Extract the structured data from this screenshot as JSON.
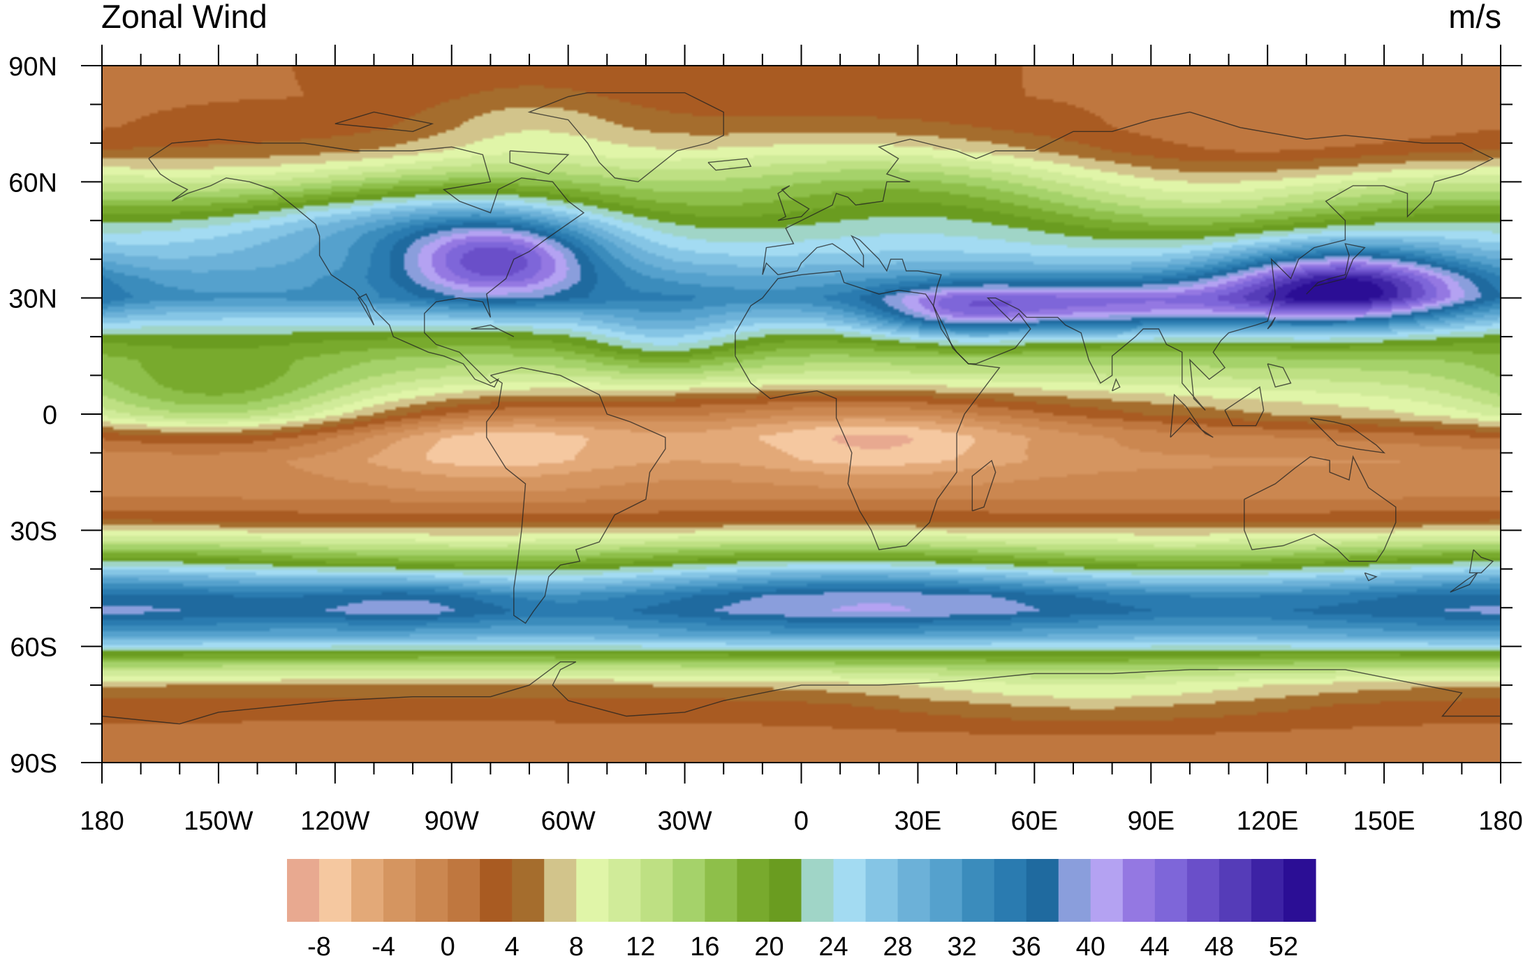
{
  "title": "Zonal Wind",
  "units": "m/s",
  "map": {
    "projection": "cylindrical-equidistant",
    "lon_range": [
      -180,
      180
    ],
    "lat_range": [
      -90,
      90
    ],
    "x_ticks": [
      {
        "value": -180,
        "label": "180"
      },
      {
        "value": -150,
        "label": "150W"
      },
      {
        "value": -120,
        "label": "120W"
      },
      {
        "value": -90,
        "label": "90W"
      },
      {
        "value": -60,
        "label": "60W"
      },
      {
        "value": -30,
        "label": "30W"
      },
      {
        "value": 0,
        "label": "0"
      },
      {
        "value": 30,
        "label": "30E"
      },
      {
        "value": 60,
        "label": "60E"
      },
      {
        "value": 90,
        "label": "90E"
      },
      {
        "value": 120,
        "label": "120E"
      },
      {
        "value": 150,
        "label": "150E"
      },
      {
        "value": 180,
        "label": "180"
      }
    ],
    "y_ticks": [
      {
        "value": 90,
        "label": "90N"
      },
      {
        "value": 60,
        "label": "60N"
      },
      {
        "value": 30,
        "label": "30N"
      },
      {
        "value": 0,
        "label": "0"
      },
      {
        "value": -30,
        "label": "30S"
      },
      {
        "value": -60,
        "label": "60S"
      },
      {
        "value": -90,
        "label": "90S"
      }
    ],
    "minor_x_step": 10,
    "minor_y_step": 10
  },
  "colorbar": {
    "colors": [
      "#E8A990",
      "#F5C8A0",
      "#E3A978",
      "#D59560",
      "#CB8750",
      "#BF773F",
      "#A95B22",
      "#A56D2D",
      "#D2C48B",
      "#E0F5A8",
      "#D0EB99",
      "#BEE083",
      "#A5D26A",
      "#8EBF4A",
      "#78AA2D",
      "#6A9C20",
      "#A0D5C7",
      "#A3DBF2",
      "#85C5E5",
      "#6CB1D8",
      "#55A1CD",
      "#3B8CBC",
      "#2A7BB0",
      "#1F6A9F",
      "#8A9EDC",
      "#B4A2F2",
      "#9478E2",
      "#7E66D9",
      "#6A4FC9",
      "#553CB8",
      "#3D22A5",
      "#2B0E95"
    ],
    "label_values": [
      -8,
      -4,
      0,
      4,
      8,
      12,
      16,
      20,
      24,
      28,
      32,
      36,
      40,
      44,
      48,
      52
    ],
    "label_texts": [
      "-8",
      "-4",
      "0",
      "4",
      "8",
      "12",
      "16",
      "20",
      "24",
      "28",
      "32",
      "36",
      "40",
      "44",
      "48",
      "52"
    ],
    "min": -10,
    "step": 2
  },
  "field": {
    "description_hidden": true,
    "zonal_profile": [
      {
        "lat": -90,
        "u": 2
      },
      {
        "lat": -84,
        "u": 1
      },
      {
        "lat": -75,
        "u": 3
      },
      {
        "lat": -70,
        "u": 6
      },
      {
        "lat": -66,
        "u": 12
      },
      {
        "lat": -62,
        "u": 20
      },
      {
        "lat": -57,
        "u": 30
      },
      {
        "lat": -51,
        "u": 36
      },
      {
        "lat": -47,
        "u": 34
      },
      {
        "lat": -42,
        "u": 26
      },
      {
        "lat": -37,
        "u": 18
      },
      {
        "lat": -32,
        "u": 10
      },
      {
        "lat": -27,
        "u": 3
      },
      {
        "lat": -20,
        "u": -1
      },
      {
        "lat": -12,
        "u": -2
      },
      {
        "lat": -6,
        "u": 1
      },
      {
        "lat": 0,
        "u": 8
      },
      {
        "lat": 8,
        "u": 12
      },
      {
        "lat": 14,
        "u": 15
      },
      {
        "lat": 20,
        "u": 20
      },
      {
        "lat": 25,
        "u": 26
      },
      {
        "lat": 30,
        "u": 32
      },
      {
        "lat": 35,
        "u": 30
      },
      {
        "lat": 40,
        "u": 26
      },
      {
        "lat": 48,
        "u": 20
      },
      {
        "lat": 55,
        "u": 14
      },
      {
        "lat": 62,
        "u": 9
      },
      {
        "lat": 68,
        "u": 5
      },
      {
        "lat": 74,
        "u": 3
      },
      {
        "lat": 82,
        "u": 2
      },
      {
        "lat": 90,
        "u": 2
      }
    ],
    "anomalies": [
      {
        "lon": 140,
        "lat": 33,
        "amp": 22,
        "sx": 22,
        "sy": 7
      },
      {
        "lon": 75,
        "lat": 27,
        "amp": 14,
        "sx": 35,
        "sy": 5
      },
      {
        "lon": 40,
        "lat": 26,
        "amp": 8,
        "sx": 15,
        "sy": 5
      },
      {
        "lon": -78,
        "lat": 40,
        "amp": 18,
        "sx": 18,
        "sy": 7
      },
      {
        "lon": -110,
        "lat": 50,
        "amp": 10,
        "sx": 40,
        "sy": 8
      },
      {
        "lon": -35,
        "lat": 20,
        "amp": 6,
        "sx": 15,
        "sy": 7
      },
      {
        "lon": -150,
        "lat": 5,
        "amp": 8,
        "sx": 25,
        "sy": 8
      },
      {
        "lon": 5,
        "lat": 0,
        "amp": -8,
        "sx": 70,
        "sy": 6
      },
      {
        "lon": -80,
        "lat": -7,
        "amp": -6,
        "sx": 25,
        "sy": 7
      },
      {
        "lon": 20,
        "lat": -8,
        "amp": -5,
        "sx": 25,
        "sy": 6
      },
      {
        "lon": 0,
        "lat": 60,
        "amp": 6,
        "sx": 40,
        "sy": 10
      },
      {
        "lon": 130,
        "lat": 70,
        "amp": -3,
        "sx": 40,
        "sy": 8
      },
      {
        "lon": -100,
        "lat": -48,
        "amp": 6,
        "sx": 20,
        "sy": 5
      },
      {
        "lon": 60,
        "lat": -47,
        "amp": 4,
        "sx": 50,
        "sy": 5
      },
      {
        "lon": -70,
        "lat": 75,
        "amp": 4,
        "sx": 20,
        "sy": 8
      },
      {
        "lon": 75,
        "lat": -72,
        "amp": 4,
        "sx": 40,
        "sy": 6
      }
    ]
  }
}
